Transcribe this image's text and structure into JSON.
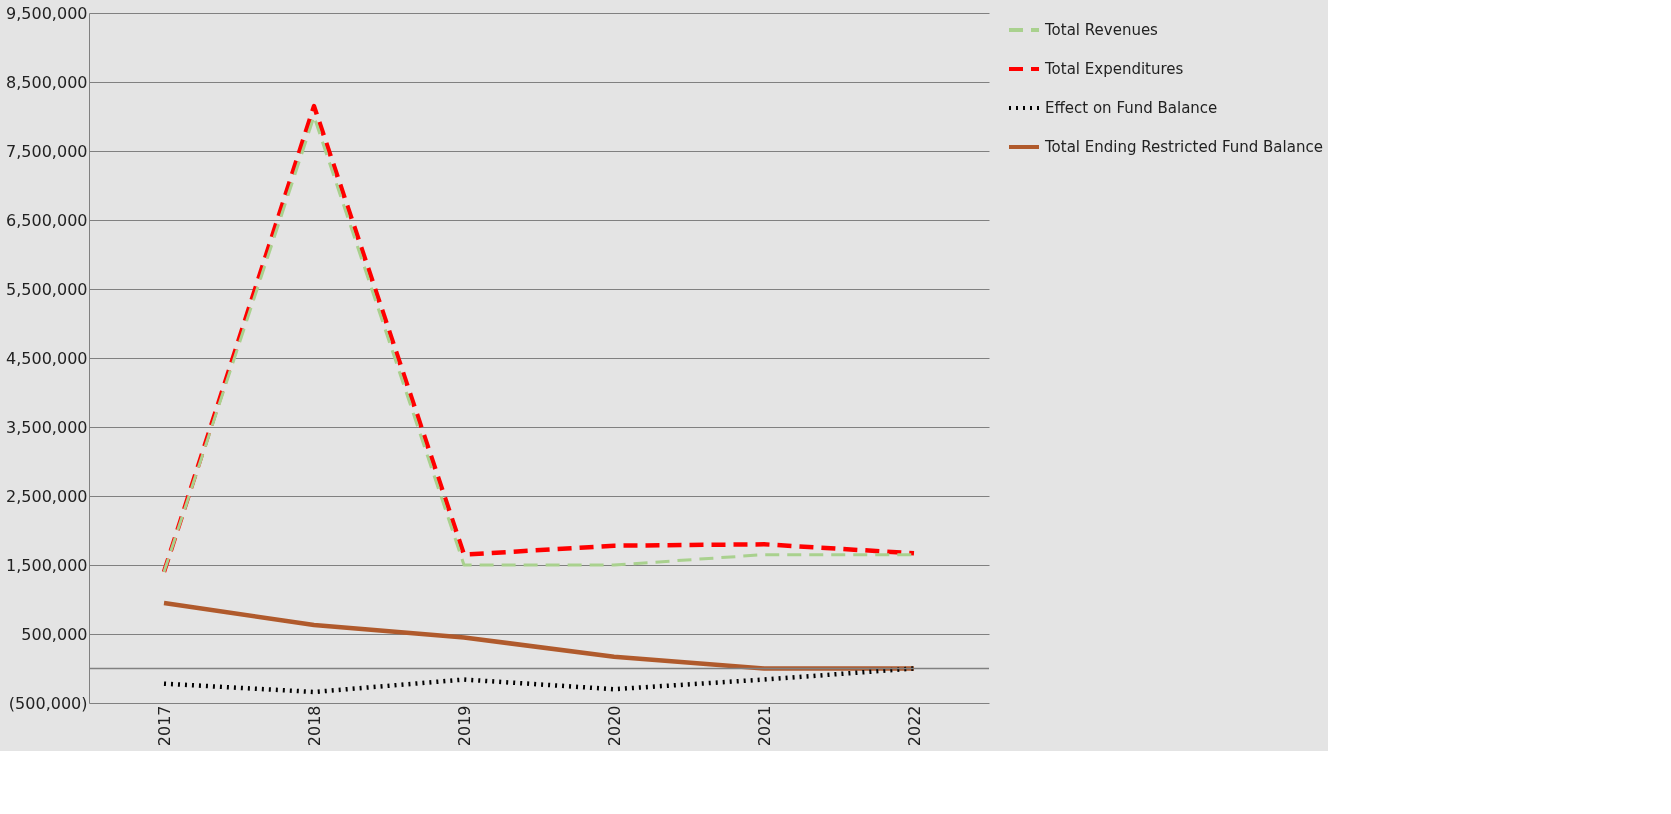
{
  "chart_data": {
    "type": "line",
    "categories": [
      "2017",
      "2018",
      "2019",
      "2020",
      "2021",
      "2022"
    ],
    "series": [
      {
        "name": "Total Revenues",
        "color": "#a9d18e",
        "line_style": "dashed",
        "values": [
          1400000,
          8000000,
          1500000,
          1500000,
          1650000,
          1650000
        ]
      },
      {
        "name": "Total Expenditures",
        "color": "#ff0000",
        "line_style": "dashed",
        "values": [
          1400000,
          8150000,
          1650000,
          1780000,
          1800000,
          1670000
        ]
      },
      {
        "name": "Effect on Fund Balance",
        "color": "#000000",
        "line_style": "dotted",
        "values": [
          -220000,
          -340000,
          -160000,
          -300000,
          -160000,
          0
        ]
      },
      {
        "name": "Total Ending Restricted Fund Balance",
        "color": "#b05a2c",
        "line_style": "solid",
        "values": [
          950000,
          630000,
          450000,
          170000,
          0,
          0
        ]
      }
    ],
    "ylim": [
      -500000,
      9500000
    ],
    "yticks": [
      {
        "value": -500000,
        "label": "(500,000)"
      },
      {
        "value": 500000,
        "label": "500,000"
      },
      {
        "value": 1500000,
        "label": "1,500,000"
      },
      {
        "value": 2500000,
        "label": "2,500,000"
      },
      {
        "value": 3500000,
        "label": "3,500,000"
      },
      {
        "value": 4500000,
        "label": "4,500,000"
      },
      {
        "value": 5500000,
        "label": "5,500,000"
      },
      {
        "value": 6500000,
        "label": "6,500,000"
      },
      {
        "value": 7500000,
        "label": "7,500,000"
      },
      {
        "value": 8500000,
        "label": "8,500,000"
      },
      {
        "value": 9500000,
        "label": "9,500,000"
      }
    ],
    "ref_lines": [
      {
        "axis": "y",
        "value": 0,
        "color": "#808080"
      }
    ],
    "grid": "y",
    "legend": "right",
    "marker": "none"
  }
}
